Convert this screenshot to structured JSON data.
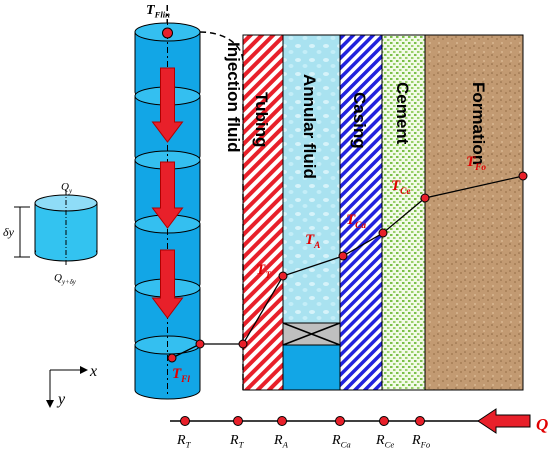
{
  "small_cylinder": {
    "top_flux": {
      "main": "Q",
      "sub": "y"
    },
    "height": "δy",
    "bottom_flux": {
      "main": "Q",
      "sub": "y+δy"
    }
  },
  "axes": {
    "x": "x",
    "y": "y"
  },
  "inlet_temperature": {
    "main": "T",
    "sub": "Flin"
  },
  "layers": [
    "Injection fluid",
    "Tubing",
    "Annular fluid",
    "Casing",
    "Cement",
    "Formation"
  ],
  "temperatures": [
    {
      "main": "T",
      "sub": "Fl"
    },
    {
      "main": "T",
      "sub": "T"
    },
    {
      "main": "T",
      "sub": "A"
    },
    {
      "main": "T",
      "sub": "Ca"
    },
    {
      "main": "T",
      "sub": "Ce"
    },
    {
      "main": "T",
      "sub": "Fo"
    }
  ],
  "resistances": [
    {
      "main": "R",
      "sub": "T"
    },
    {
      "main": "R",
      "sub": "T"
    },
    {
      "main": "R",
      "sub": "A"
    },
    {
      "main": "R",
      "sub": "Ca"
    },
    {
      "main": "R",
      "sub": "Ce"
    },
    {
      "main": "R",
      "sub": "Fo"
    }
  ],
  "heat_flow": "Q"
}
